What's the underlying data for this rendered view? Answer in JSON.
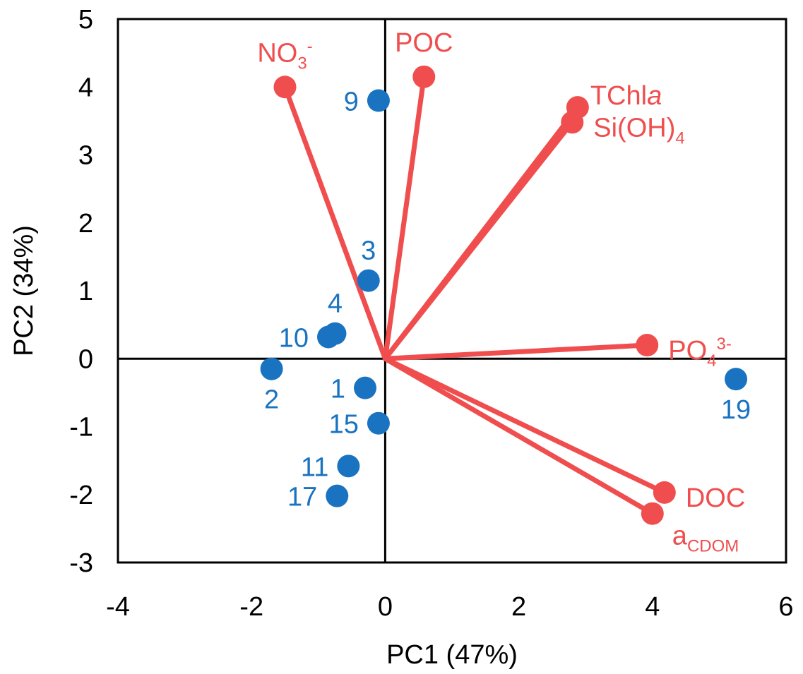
{
  "chart_data": {
    "type": "scatter",
    "xlabel": "PC1 (47%)",
    "ylabel": "PC2 (34%)",
    "xlim": [
      -4,
      6
    ],
    "ylim": [
      -3,
      5
    ],
    "x_ticks": [
      "-4",
      "-2",
      "0",
      "2",
      "4",
      "6"
    ],
    "y_ticks": [
      "-3",
      "-2",
      "-1",
      "0",
      "1",
      "2",
      "3",
      "4",
      "5"
    ],
    "grid": false,
    "colors": {
      "samples": "#1a73c0",
      "loadings": "#f04e4e",
      "axes": "#000000"
    },
    "samples": [
      {
        "label": "9",
        "x": -0.1,
        "y": 3.8,
        "label_side": "left"
      },
      {
        "label": "3",
        "x": -0.25,
        "y": 1.15,
        "label_side": "top"
      },
      {
        "label": "4",
        "x": -0.75,
        "y": 0.37,
        "label_side": "top"
      },
      {
        "label": "10",
        "x": -0.85,
        "y": 0.32,
        "label_side": "left"
      },
      {
        "label": "2",
        "x": -1.7,
        "y": -0.15,
        "label_side": "bottom"
      },
      {
        "label": "1",
        "x": -0.3,
        "y": -0.43,
        "label_side": "left"
      },
      {
        "label": "15",
        "x": -0.1,
        "y": -0.95,
        "label_side": "left"
      },
      {
        "label": "11",
        "x": -0.55,
        "y": -1.58,
        "label_side": "left"
      },
      {
        "label": "17",
        "x": -0.72,
        "y": -2.02,
        "label_side": "left"
      },
      {
        "label": "19",
        "x": 5.25,
        "y": -0.3,
        "label_side": "bottom"
      }
    ],
    "loadings": [
      {
        "label": "NO",
        "sub": "3",
        "sup": "-",
        "tail": "",
        "x": -1.5,
        "y": 4.0,
        "label_side": "top"
      },
      {
        "label": "POC",
        "sub": "",
        "sup": "",
        "tail": "",
        "x": 0.58,
        "y": 4.15,
        "label_side": "top"
      },
      {
        "label": "TChl",
        "sub": "",
        "sup": "",
        "tail": "a",
        "x": 2.88,
        "y": 3.7,
        "label_side": "right-up"
      },
      {
        "label": "Si(OH)",
        "sub": "4",
        "sup": "",
        "tail": "",
        "x": 2.8,
        "y": 3.48,
        "label_side": "right"
      },
      {
        "label": "PO",
        "sub": "4",
        "sup": "3-",
        "tail": "",
        "x": 3.92,
        "y": 0.2,
        "label_side": "right"
      },
      {
        "label": "DOC",
        "sub": "",
        "sup": "",
        "tail": "",
        "x": 4.18,
        "y": -1.97,
        "label_side": "right"
      },
      {
        "label": "a",
        "sub": "CDOM",
        "sup": "",
        "tail": "",
        "x": 4.0,
        "y": -2.28,
        "label_side": "below-right"
      }
    ]
  }
}
